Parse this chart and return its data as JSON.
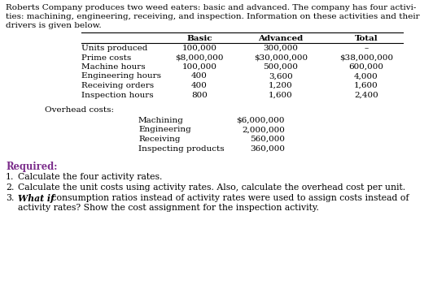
{
  "intro_line1": "Roberts Company produces two weed eaters: basic and advanced. The company has four activi-",
  "intro_line2": "ties: machining, engineering, receiving, and inspection. Information on these activities and their",
  "intro_line3": "drivers is given below.",
  "col_headers": [
    "Basic",
    "Advanced",
    "Total"
  ],
  "table_rows": [
    [
      "Units produced",
      "100,000",
      "300,000",
      "–"
    ],
    [
      "Prime costs",
      "$8,000,000",
      "$30,000,000",
      "$38,000,000"
    ],
    [
      "Machine hours",
      "100,000",
      "500,000",
      "600,000"
    ],
    [
      "Engineering hours",
      "400",
      "3,600",
      "4,000"
    ],
    [
      "Receiving orders",
      "400",
      "1,200",
      "1,600"
    ],
    [
      "Inspection hours",
      "800",
      "1,600",
      "2,400"
    ]
  ],
  "overhead_label": "Overhead costs:",
  "overhead_rows": [
    [
      "Machining",
      "$6,000,000"
    ],
    [
      "Engineering",
      "2,000,000"
    ],
    [
      "Receiving",
      "560,000"
    ],
    [
      "Inspecting products",
      "360,000"
    ]
  ],
  "required_label": "Required:",
  "req1": "Calculate the four activity rates.",
  "req2": "Calculate the unit costs using activity rates. Also, calculate the overhead cost per unit.",
  "req3a": " consumption ratios instead of activity rates were used to assign costs instead of",
  "req3b": "activity rates? Show the cost assignment for the inspection activity.",
  "bg_color": "#ffffff",
  "text_color": "#000000",
  "required_color": "#7B2D8B",
  "fs": 7.5,
  "fs_req": 7.8
}
